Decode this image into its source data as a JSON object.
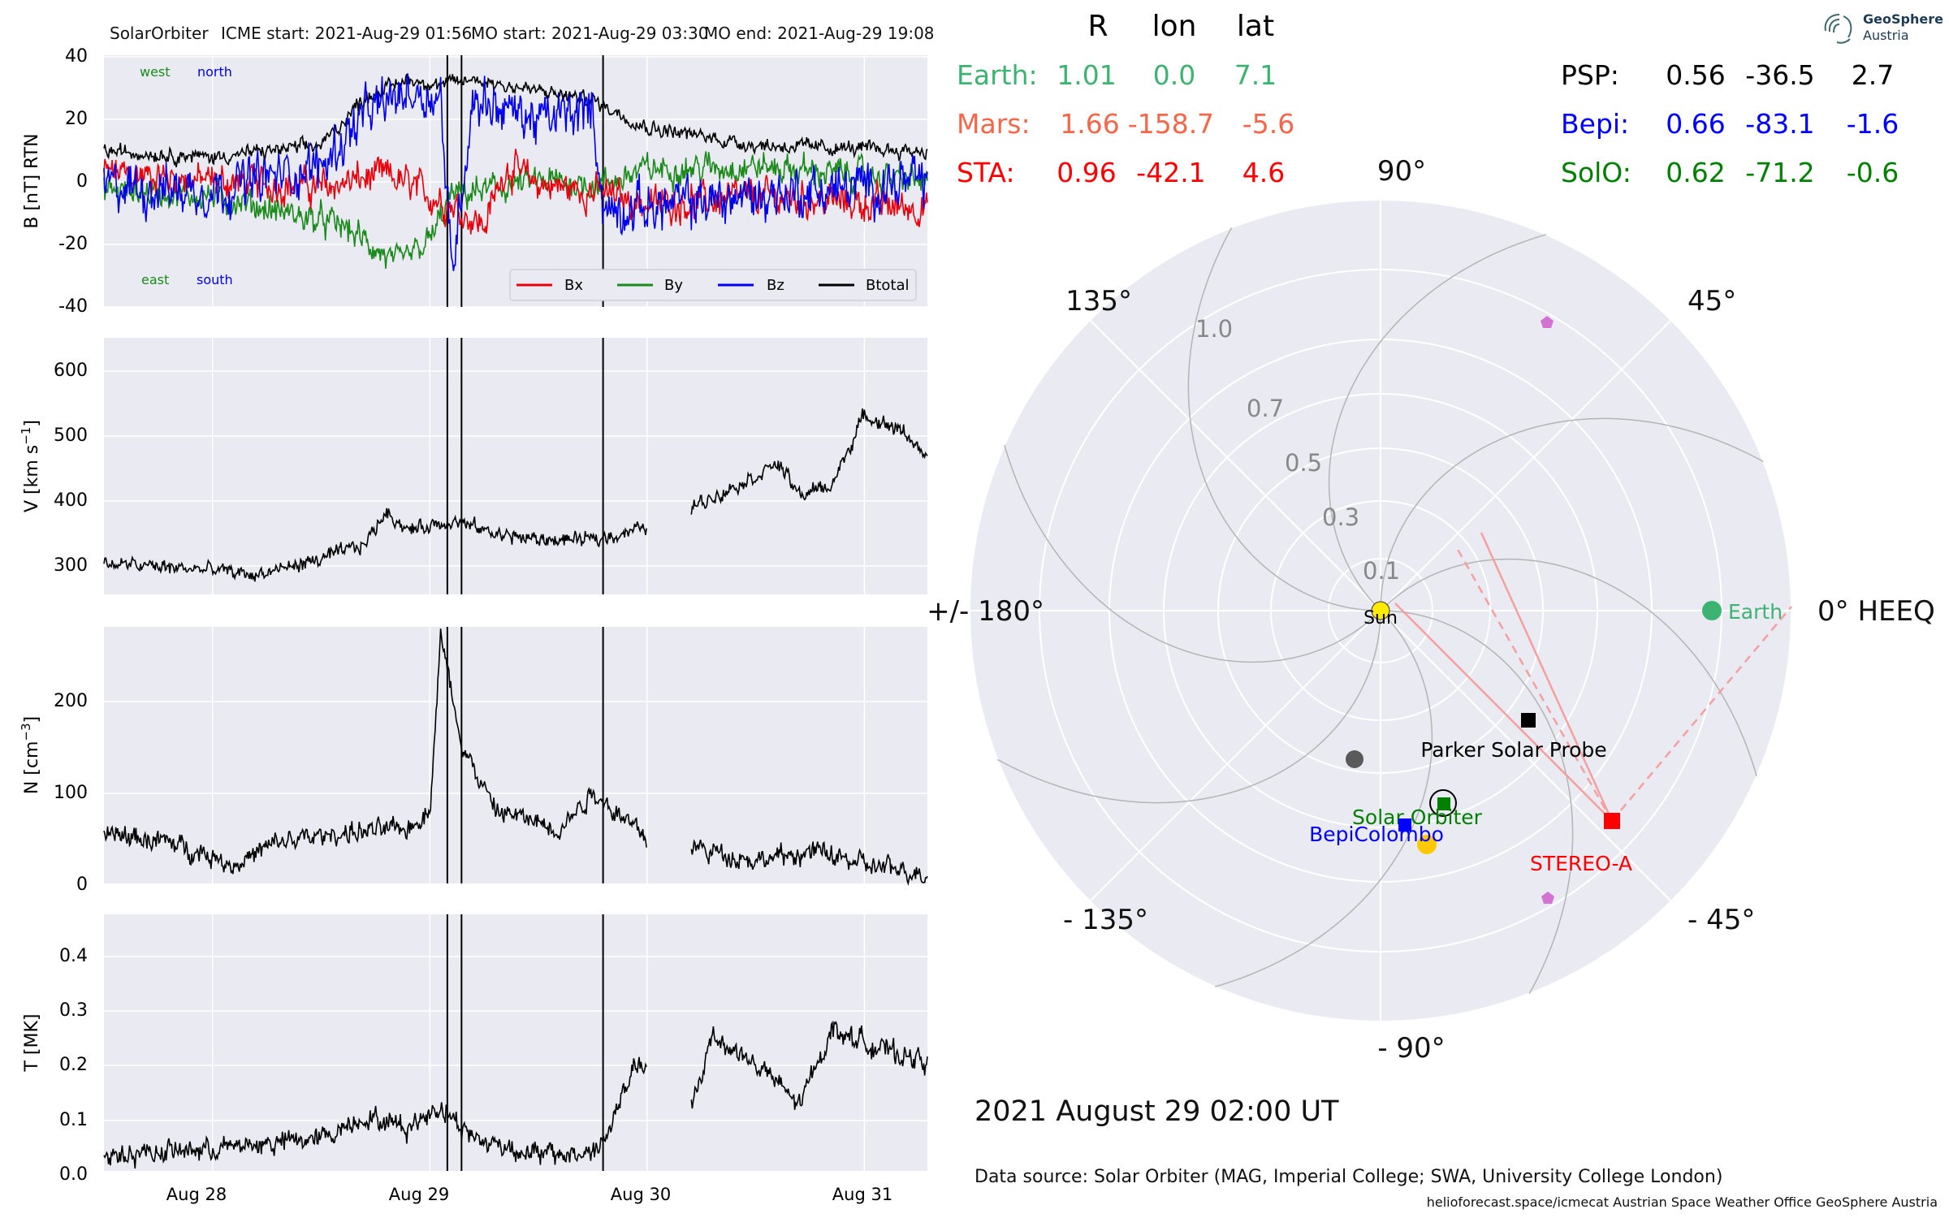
{
  "window_title": "",
  "header": {
    "mission": "SolarOrbiter",
    "icme_start": "ICME start: 2021-Aug-29 01:56",
    "mo_start": "MO start: 2021-Aug-29 03:30",
    "mo_end": "MO end: 2021-Aug-29 19:08"
  },
  "panels": {
    "b": {
      "ylabel": "B [nT] RTN",
      "ticks": [
        "40",
        "20",
        "0",
        "-20",
        "-40"
      ],
      "west": "west",
      "north": "north",
      "east": "east",
      "south": "south",
      "legend": [
        "Bx",
        "By",
        "Bz",
        "Btotal"
      ]
    },
    "v": {
      "ylabel": "V [km s$^{-1}$]",
      "ylabel_main": "V [km s",
      "ylabel_sup": "−1",
      "ylabel_end": "]",
      "ticks": [
        "600",
        "500",
        "400",
        "300"
      ]
    },
    "n": {
      "ylabel_main": "N [cm",
      "ylabel_sup": "−3",
      "ylabel_end": "]",
      "ticks": [
        "200",
        "100",
        "0"
      ]
    },
    "t": {
      "ylabel": "T [MK]",
      "ticks": [
        "0.4",
        "0.3",
        "0.2",
        "0.1",
        "0.0"
      ]
    },
    "xticks": [
      "Aug 28",
      "Aug 29",
      "Aug 30",
      "Aug 31"
    ]
  },
  "positions_table": {
    "headers": [
      "R",
      "lon",
      "lat"
    ],
    "left": [
      {
        "name": "Earth:",
        "r": "1.01",
        "lon": "0.0",
        "lat": "7.1"
      },
      {
        "name": "Mars:",
        "r": "1.66",
        "lon": "-158.7",
        "lat": "-5.6"
      },
      {
        "name": "STA:",
        "r": "0.96",
        "lon": "-42.1",
        "lat": "4.6"
      }
    ],
    "right": [
      {
        "name": "PSP:",
        "r": "0.56",
        "lon": "-36.5",
        "lat": "2.7"
      },
      {
        "name": "Bepi:",
        "r": "0.66",
        "lon": "-83.1",
        "lat": "-1.6"
      },
      {
        "name": "SolO:",
        "r": "0.62",
        "lon": "-71.2",
        "lat": "-0.6"
      }
    ]
  },
  "polar": {
    "angle_labels": [
      "90°",
      "45°",
      "0° HEEQ",
      "- 45°",
      "- 90°",
      "- 135°",
      "+/- 180°",
      "135°"
    ],
    "radial_labels": [
      "1.0",
      "0.7",
      "0.5",
      "0.3",
      "0.1"
    ],
    "bodies": {
      "sun": "Sun",
      "earth": "Earth",
      "psp": "Parker Solar Probe",
      "solo": "Solar Orbiter",
      "bepi": "BepiColombo",
      "sta": "STEREO-A"
    }
  },
  "date_label": "2021 August 29  02:00 UT",
  "data_source": "Data source: Solar Orbiter (MAG, Imperial College; SWA, University College London)",
  "footer": "helioforecast.space/icmecat   Austrian Space Weather Office   GeoSphere Austria",
  "logo": {
    "name": "GeoSphere",
    "sub": "Austria"
  },
  "colors": {
    "bx": "#e8000b",
    "by": "#1a8a1a",
    "bz": "#0000ee",
    "btot": "#000000",
    "earth": "#3cb371",
    "mars": "#f4674a",
    "sta": "#ff0000",
    "psp": "#000000",
    "bepi": "#0000ff",
    "solo": "#008000",
    "panel_bg": "#eaeaf2"
  },
  "chart_data": [
    {
      "type": "line",
      "title": "SolarOrbiter",
      "ylabel": "B [nT] RTN",
      "ylim": [
        -40,
        40
      ],
      "x_range": [
        "2021-08-27 12:00",
        "2021-08-31 07:00"
      ],
      "series": [
        {
          "name": "Bx",
          "values_approx": [
            [
              27.5,
              3
            ],
            [
              28.0,
              0
            ],
            [
              28.5,
              -2
            ],
            [
              28.8,
              2
            ],
            [
              29.1,
              -8
            ],
            [
              29.25,
              -15
            ],
            [
              29.35,
              5
            ],
            [
              29.5,
              -1
            ],
            [
              29.8,
              -4
            ],
            [
              30.0,
              -8
            ],
            [
              30.5,
              -5
            ],
            [
              31.3,
              -9
            ]
          ]
        },
        {
          "name": "By",
          "values_approx": [
            [
              27.5,
              -3
            ],
            [
              28.0,
              -5
            ],
            [
              28.6,
              -15
            ],
            [
              28.85,
              -28
            ],
            [
              29.0,
              -20
            ],
            [
              29.1,
              -5
            ],
            [
              29.5,
              0
            ],
            [
              29.8,
              -1
            ],
            [
              30.0,
              4
            ],
            [
              30.5,
              5
            ],
            [
              31.3,
              0
            ]
          ]
        },
        {
          "name": "Bz",
          "values_approx": [
            [
              27.5,
              -2
            ],
            [
              28.0,
              -3
            ],
            [
              28.5,
              5
            ],
            [
              28.7,
              22
            ],
            [
              28.9,
              30
            ],
            [
              29.05,
              28
            ],
            [
              29.1,
              -30
            ],
            [
              29.2,
              28
            ],
            [
              29.5,
              20
            ],
            [
              29.75,
              24
            ],
            [
              29.8,
              -10
            ],
            [
              30.5,
              -5
            ],
            [
              31.3,
              0
            ]
          ]
        },
        {
          "name": "Btotal",
          "values_approx": [
            [
              27.5,
              10
            ],
            [
              28.0,
              8
            ],
            [
              28.5,
              12
            ],
            [
              28.7,
              28
            ],
            [
              28.9,
              34
            ],
            [
              29.05,
              32
            ],
            [
              29.2,
              34
            ],
            [
              29.5,
              30
            ],
            [
              29.75,
              27
            ],
            [
              30.0,
              18
            ],
            [
              30.5,
              12
            ],
            [
              31.3,
              10
            ]
          ]
        }
      ],
      "vlines": [
        "2021-08-29 01:56",
        "2021-08-29 03:30",
        "2021-08-29 19:08"
      ]
    },
    {
      "type": "line",
      "ylabel": "V [km s^-1]",
      "ylim": [
        270,
        640
      ],
      "series": [
        {
          "values_approx": [
            [
              27.5,
              298
            ],
            [
              28.0,
              288
            ],
            [
              28.2,
              280
            ],
            [
              28.5,
              305
            ],
            [
              28.7,
              328
            ],
            [
              28.8,
              380
            ],
            [
              28.9,
              350
            ],
            [
              29.1,
              365
            ],
            [
              29.3,
              345
            ],
            [
              29.5,
              335
            ],
            [
              29.75,
              335
            ],
            [
              30.0,
              355
            ],
            [
              30.2,
              385
            ],
            [
              30.5,
              435
            ],
            [
              30.6,
              455
            ],
            [
              30.7,
              405
            ],
            [
              30.85,
              420
            ],
            [
              31.0,
              530
            ],
            [
              31.2,
              500
            ],
            [
              31.3,
              450
            ]
          ]
        }
      ]
    },
    {
      "type": "line",
      "ylabel": "N [cm^-3]",
      "ylim": [
        0,
        275
      ],
      "series": [
        {
          "values_approx": [
            [
              27.5,
              55
            ],
            [
              27.8,
              45
            ],
            [
              28.0,
              30
            ],
            [
              28.1,
              20
            ],
            [
              28.3,
              45
            ],
            [
              28.6,
              55
            ],
            [
              28.9,
              60
            ],
            [
              29.0,
              80
            ],
            [
              29.05,
              270
            ],
            [
              29.15,
              150
            ],
            [
              29.3,
              80
            ],
            [
              29.6,
              60
            ],
            [
              29.75,
              100
            ],
            [
              30.0,
              50
            ],
            [
              30.2,
              40
            ],
            [
              30.5,
              25
            ],
            [
              30.8,
              35
            ],
            [
              31.0,
              20
            ],
            [
              31.3,
              10
            ]
          ]
        }
      ]
    },
    {
      "type": "line",
      "ylabel": "T [MK]",
      "ylim": [
        0,
        0.47
      ],
      "series": [
        {
          "values_approx": [
            [
              27.5,
              0.03
            ],
            [
              28.0,
              0.04
            ],
            [
              28.5,
              0.06
            ],
            [
              28.7,
              0.1
            ],
            [
              28.9,
              0.08
            ],
            [
              29.05,
              0.12
            ],
            [
              29.2,
              0.06
            ],
            [
              29.5,
              0.03
            ],
            [
              29.7,
              0.03
            ],
            [
              29.8,
              0.05
            ],
            [
              29.95,
              0.2
            ],
            [
              30.2,
              0.1
            ],
            [
              30.3,
              0.25
            ],
            [
              30.55,
              0.18
            ],
            [
              30.7,
              0.12
            ],
            [
              30.85,
              0.26
            ],
            [
              31.1,
              0.22
            ],
            [
              31.3,
              0.2
            ]
          ]
        }
      ]
    },
    {
      "type": "scatter",
      "coord": "polar HEEQ",
      "points": [
        {
          "name": "Earth",
          "r": 1.01,
          "lon": 0.0
        },
        {
          "name": "STEREO-A",
          "r": 0.96,
          "lon": -42.1
        },
        {
          "name": "Parker Solar Probe",
          "r": 0.56,
          "lon": -36.5
        },
        {
          "name": "BepiColombo",
          "r": 0.66,
          "lon": -83.1
        },
        {
          "name": "Solar Orbiter",
          "r": 0.62,
          "lon": -71.2
        }
      ]
    }
  ]
}
